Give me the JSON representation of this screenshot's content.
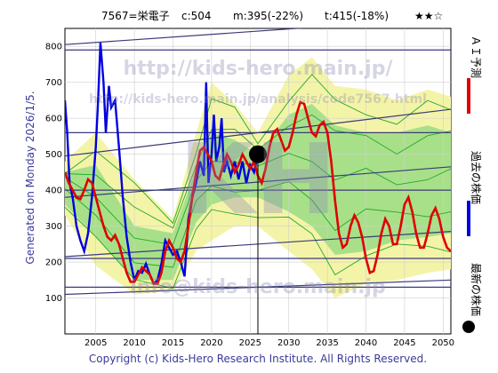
{
  "header": {
    "code": "7567=栄電子",
    "current": "c:504",
    "min_target": "m:395(-22%)",
    "target": "t:415(-18%)",
    "rating": "★★☆"
  },
  "side_label": "Generated on Monday 2026/1/5.",
  "footer": "Copyright (c) Kids-Hero Research Institute. All Rights Reserved.",
  "watermarks": [
    "http://kids-hero.main.jp/",
    "http://kids-hero.main.jp/analysis/code7567.html",
    "KH",
    "info@kids-hero.main.jp"
  ],
  "legend": [
    {
      "label": "ＡＩ予測",
      "color": "#e00000",
      "marker": "line"
    },
    {
      "label": "過去の株価",
      "color": "#0000e0",
      "marker": "line"
    },
    {
      "label": "最新の株価",
      "color": "#000000",
      "marker": "dot"
    }
  ],
  "colors": {
    "prediction": "#e00000",
    "history": "#0000e0",
    "ensemble": "#22aa22",
    "band_outer": "#f4f4a8",
    "band_inner": "#a8e08a",
    "trend": "#3a3a7a",
    "grid": "#cfcfcf"
  },
  "chart_data": {
    "type": "line",
    "xlim": [
      2001,
      2051
    ],
    "ylim": [
      0,
      850
    ],
    "xticks": [
      2005,
      2010,
      2015,
      2020,
      2025,
      2030,
      2035,
      2040,
      2045,
      2050
    ],
    "yticks": [
      100,
      200,
      300,
      400,
      500,
      600,
      700,
      800
    ],
    "grid": true,
    "latest_point": {
      "x": 2026,
      "y": 500
    },
    "history": [
      [
        2001,
        650
      ],
      [
        2001.3,
        560
      ],
      [
        2001.6,
        420
      ],
      [
        2002,
        380
      ],
      [
        2002.5,
        300
      ],
      [
        2003,
        260
      ],
      [
        2003.5,
        230
      ],
      [
        2004,
        280
      ],
      [
        2004.5,
        380
      ],
      [
        2005,
        520
      ],
      [
        2005.3,
        650
      ],
      [
        2005.6,
        810
      ],
      [
        2006,
        700
      ],
      [
        2006.3,
        560
      ],
      [
        2006.7,
        690
      ],
      [
        2007,
        630
      ],
      [
        2007.5,
        650
      ],
      [
        2008,
        520
      ],
      [
        2008.5,
        380
      ],
      [
        2009,
        270
      ],
      [
        2009.5,
        200
      ],
      [
        2010,
        150
      ],
      [
        2010.5,
        175
      ],
      [
        2011,
        170
      ],
      [
        2011.5,
        195
      ],
      [
        2012,
        165
      ],
      [
        2012.5,
        140
      ],
      [
        2013,
        150
      ],
      [
        2013.5,
        195
      ],
      [
        2014,
        260
      ],
      [
        2014.5,
        240
      ],
      [
        2015,
        220
      ],
      [
        2015.5,
        230
      ],
      [
        2016,
        200
      ],
      [
        2016.5,
        160
      ],
      [
        2017,
        320
      ],
      [
        2017.5,
        380
      ],
      [
        2018,
        420
      ],
      [
        2018.5,
        480
      ],
      [
        2019,
        440
      ],
      [
        2019.3,
        700
      ],
      [
        2019.6,
        420
      ],
      [
        2020,
        500
      ],
      [
        2020.3,
        610
      ],
      [
        2020.6,
        480
      ],
      [
        2021,
        520
      ],
      [
        2021.3,
        600
      ],
      [
        2021.6,
        450
      ],
      [
        2022,
        480
      ],
      [
        2022.5,
        440
      ],
      [
        2023,
        480
      ],
      [
        2023.5,
        430
      ],
      [
        2024,
        480
      ],
      [
        2024.5,
        420
      ],
      [
        2025,
        470
      ],
      [
        2025.5,
        450
      ],
      [
        2026,
        500
      ]
    ],
    "prediction": [
      [
        2001,
        450
      ],
      [
        2001.5,
        420
      ],
      [
        2002,
        400
      ],
      [
        2002.5,
        380
      ],
      [
        2003,
        375
      ],
      [
        2003.5,
        400
      ],
      [
        2004,
        430
      ],
      [
        2004.5,
        420
      ],
      [
        2005,
        380
      ],
      [
        2005.5,
        340
      ],
      [
        2006,
        300
      ],
      [
        2006.5,
        270
      ],
      [
        2007,
        260
      ],
      [
        2007.5,
        275
      ],
      [
        2008,
        250
      ],
      [
        2008.5,
        210
      ],
      [
        2009,
        170
      ],
      [
        2009.5,
        145
      ],
      [
        2010,
        145
      ],
      [
        2010.5,
        165
      ],
      [
        2011,
        185
      ],
      [
        2011.5,
        175
      ],
      [
        2012,
        165
      ],
      [
        2012.5,
        140
      ],
      [
        2013,
        140
      ],
      [
        2013.5,
        170
      ],
      [
        2014,
        230
      ],
      [
        2014.5,
        260
      ],
      [
        2015,
        240
      ],
      [
        2015.5,
        210
      ],
      [
        2016,
        200
      ],
      [
        2016.5,
        230
      ],
      [
        2017,
        300
      ],
      [
        2017.5,
        380
      ],
      [
        2018,
        450
      ],
      [
        2018.5,
        510
      ],
      [
        2019,
        520
      ],
      [
        2019.5,
        500
      ],
      [
        2020,
        480
      ],
      [
        2020.5,
        440
      ],
      [
        2021,
        430
      ],
      [
        2021.5,
        470
      ],
      [
        2022,
        500
      ],
      [
        2022.5,
        480
      ],
      [
        2023,
        450
      ],
      [
        2023.5,
        470
      ],
      [
        2024,
        500
      ],
      [
        2024.5,
        480
      ],
      [
        2025,
        460
      ],
      [
        2025.5,
        480
      ],
      [
        2026,
        440
      ],
      [
        2026.5,
        420
      ],
      [
        2027,
        460
      ],
      [
        2027.5,
        520
      ],
      [
        2028,
        560
      ],
      [
        2028.5,
        570
      ],
      [
        2029,
        540
      ],
      [
        2029.5,
        510
      ],
      [
        2030,
        520
      ],
      [
        2030.5,
        560
      ],
      [
        2031,
        610
      ],
      [
        2031.5,
        645
      ],
      [
        2032,
        640
      ],
      [
        2032.5,
        600
      ],
      [
        2033,
        560
      ],
      [
        2033.5,
        550
      ],
      [
        2034,
        580
      ],
      [
        2034.5,
        590
      ],
      [
        2035,
        560
      ],
      [
        2035.5,
        480
      ],
      [
        2036,
        370
      ],
      [
        2036.5,
        280
      ],
      [
        2037,
        240
      ],
      [
        2037.5,
        250
      ],
      [
        2038,
        300
      ],
      [
        2038.5,
        330
      ],
      [
        2039,
        310
      ],
      [
        2039.5,
        270
      ],
      [
        2040,
        210
      ],
      [
        2040.5,
        170
      ],
      [
        2041,
        175
      ],
      [
        2041.5,
        220
      ],
      [
        2042,
        280
      ],
      [
        2042.5,
        320
      ],
      [
        2043,
        300
      ],
      [
        2043.5,
        250
      ],
      [
        2044,
        250
      ],
      [
        2044.5,
        300
      ],
      [
        2045,
        360
      ],
      [
        2045.5,
        380
      ],
      [
        2046,
        340
      ],
      [
        2046.5,
        280
      ],
      [
        2047,
        240
      ],
      [
        2047.5,
        240
      ],
      [
        2048,
        280
      ],
      [
        2048.5,
        330
      ],
      [
        2049,
        350
      ],
      [
        2049.5,
        320
      ],
      [
        2050,
        270
      ],
      [
        2050.5,
        240
      ],
      [
        2051,
        230
      ]
    ],
    "band_outer": {
      "x": [
        2001,
        2005,
        2010,
        2015,
        2018,
        2020,
        2023,
        2026,
        2030,
        2033,
        2036,
        2040,
        2044,
        2048,
        2051
      ],
      "upper": [
        480,
        560,
        430,
        320,
        560,
        700,
        640,
        560,
        720,
        770,
        690,
        680,
        650,
        680,
        660
      ],
      "lower": [
        330,
        190,
        110,
        120,
        230,
        260,
        300,
        300,
        230,
        180,
        100,
        140,
        150,
        170,
        180
      ]
    },
    "band_inner": {
      "x": [
        2001,
        2005,
        2010,
        2015,
        2018,
        2020,
        2023,
        2026,
        2030,
        2033,
        2036,
        2040,
        2044,
        2048,
        2051
      ],
      "upper": [
        450,
        470,
        300,
        280,
        460,
        560,
        540,
        500,
        610,
        640,
        580,
        560,
        560,
        580,
        560
      ],
      "lower": [
        360,
        270,
        150,
        150,
        310,
        360,
        380,
        380,
        340,
        300,
        220,
        230,
        260,
        270,
        280
      ]
    },
    "trend_lines": [
      {
        "x": [
          2001,
          2051
        ],
        "y": [
          805,
          880
        ]
      },
      {
        "x": [
          2001,
          2051
        ],
        "y": [
          790,
          790
        ]
      },
      {
        "x": [
          2001,
          2051
        ],
        "y": [
          495,
          625
        ]
      },
      {
        "x": [
          2001,
          2051
        ],
        "y": [
          380,
          465
        ]
      },
      {
        "x": [
          2001,
          2051
        ],
        "y": [
          400,
          400
        ]
      },
      {
        "x": [
          2001,
          2051
        ],
        "y": [
          215,
          285
        ]
      },
      {
        "x": [
          2001,
          2051
        ],
        "y": [
          210,
          210
        ]
      },
      {
        "x": [
          2001,
          2051
        ],
        "y": [
          110,
          150
        ]
      },
      {
        "x": [
          2001,
          2051
        ],
        "y": [
          560,
          560
        ]
      },
      {
        "x": [
          2001,
          2051
        ],
        "y": [
          130,
          130
        ]
      }
    ]
  }
}
